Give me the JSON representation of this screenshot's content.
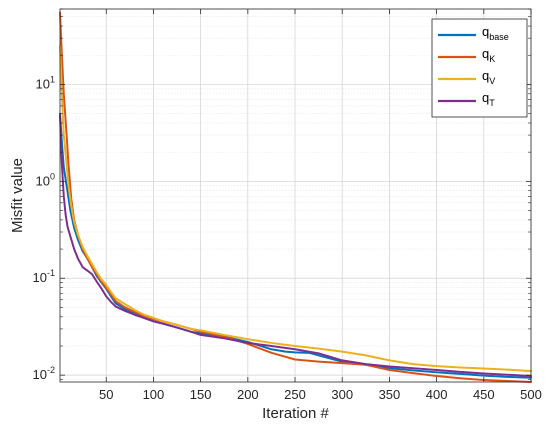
{
  "chart_data": {
    "type": "line",
    "xlabel": "Iteration #",
    "ylabel": "Misfit value",
    "xlim": [
      1,
      500
    ],
    "ylim": [
      0.0085,
      60
    ],
    "yscale": "log",
    "grid": true,
    "minor_grid": true,
    "legend_position": "top-right",
    "x_ticks": [
      50,
      100,
      150,
      200,
      250,
      300,
      350,
      400,
      450,
      500
    ],
    "x_tick_labels": [
      "50",
      "100",
      "150",
      "200",
      "250",
      "300",
      "350",
      "400",
      "450",
      "500"
    ],
    "y_ticks": [
      0.01,
      0.1,
      1,
      10
    ],
    "y_tick_labels": [
      {
        "base": "10",
        "exp": "-2"
      },
      {
        "base": "10",
        "exp": "-1"
      },
      {
        "base": "10",
        "exp": "0"
      },
      {
        "base": "10",
        "exp": "1"
      }
    ],
    "series": [
      {
        "name_main": "q",
        "name_sub": "base",
        "color": "#0072BD",
        "points": [
          [
            1,
            5
          ],
          [
            3,
            2.5
          ],
          [
            5,
            1.4
          ],
          [
            8,
            0.9
          ],
          [
            12,
            0.5
          ],
          [
            16,
            0.33
          ],
          [
            20,
            0.25
          ],
          [
            25,
            0.19
          ],
          [
            30,
            0.16
          ],
          [
            35,
            0.13
          ],
          [
            40,
            0.105
          ],
          [
            45,
            0.09
          ],
          [
            50,
            0.078
          ],
          [
            55,
            0.065
          ],
          [
            60,
            0.055
          ],
          [
            70,
            0.048
          ],
          [
            80,
            0.043
          ],
          [
            90,
            0.039
          ],
          [
            100,
            0.036
          ],
          [
            110,
            0.034
          ],
          [
            125,
            0.031
          ],
          [
            140,
            0.028
          ],
          [
            150,
            0.027
          ],
          [
            175,
            0.025
          ],
          [
            200,
            0.022
          ],
          [
            225,
            0.0185
          ],
          [
            240,
            0.0175
          ],
          [
            250,
            0.0172
          ],
          [
            265,
            0.017
          ],
          [
            280,
            0.0155
          ],
          [
            300,
            0.0138
          ],
          [
            325,
            0.0128
          ],
          [
            350,
            0.0118
          ],
          [
            375,
            0.0112
          ],
          [
            400,
            0.0107
          ],
          [
            425,
            0.0103
          ],
          [
            450,
            0.0099
          ],
          [
            475,
            0.0096
          ],
          [
            500,
            0.0094
          ]
        ]
      },
      {
        "name_main": "q",
        "name_sub": "K",
        "color": "#D95319",
        "points": [
          [
            1,
            55
          ],
          [
            3,
            20
          ],
          [
            5,
            8
          ],
          [
            8,
            3
          ],
          [
            10,
            1.5
          ],
          [
            13,
            0.65
          ],
          [
            16,
            0.4
          ],
          [
            20,
            0.28
          ],
          [
            25,
            0.2
          ],
          [
            30,
            0.16
          ],
          [
            35,
            0.13
          ],
          [
            40,
            0.11
          ],
          [
            45,
            0.092
          ],
          [
            50,
            0.08
          ],
          [
            55,
            0.068
          ],
          [
            60,
            0.058
          ],
          [
            70,
            0.05
          ],
          [
            80,
            0.045
          ],
          [
            90,
            0.041
          ],
          [
            100,
            0.038
          ],
          [
            110,
            0.036
          ],
          [
            125,
            0.033
          ],
          [
            140,
            0.03
          ],
          [
            150,
            0.028
          ],
          [
            175,
            0.025
          ],
          [
            200,
            0.021
          ],
          [
            225,
            0.017
          ],
          [
            250,
            0.0145
          ],
          [
            275,
            0.0138
          ],
          [
            300,
            0.0133
          ],
          [
            325,
            0.0128
          ],
          [
            350,
            0.0113
          ],
          [
            375,
            0.0105
          ],
          [
            400,
            0.0098
          ],
          [
            425,
            0.0093
          ],
          [
            450,
            0.0089
          ],
          [
            475,
            0.0087
          ],
          [
            500,
            0.0085
          ]
        ]
      },
      {
        "name_main": "q",
        "name_sub": "V",
        "color": "#EDB120",
        "points": [
          [
            1,
            25
          ],
          [
            3,
            8
          ],
          [
            5,
            3
          ],
          [
            8,
            1.5
          ],
          [
            10,
            0.9
          ],
          [
            13,
            0.55
          ],
          [
            16,
            0.38
          ],
          [
            20,
            0.28
          ],
          [
            25,
            0.21
          ],
          [
            30,
            0.17
          ],
          [
            35,
            0.14
          ],
          [
            40,
            0.115
          ],
          [
            45,
            0.097
          ],
          [
            50,
            0.085
          ],
          [
            55,
            0.072
          ],
          [
            60,
            0.062
          ],
          [
            70,
            0.054
          ],
          [
            80,
            0.047
          ],
          [
            90,
            0.042
          ],
          [
            100,
            0.039
          ],
          [
            110,
            0.036
          ],
          [
            125,
            0.033
          ],
          [
            140,
            0.03
          ],
          [
            150,
            0.029
          ],
          [
            175,
            0.026
          ],
          [
            200,
            0.0235
          ],
          [
            225,
            0.0215
          ],
          [
            250,
            0.02
          ],
          [
            275,
            0.0188
          ],
          [
            300,
            0.0175
          ],
          [
            325,
            0.016
          ],
          [
            350,
            0.0142
          ],
          [
            375,
            0.013
          ],
          [
            400,
            0.0124
          ],
          [
            425,
            0.012
          ],
          [
            450,
            0.0117
          ],
          [
            475,
            0.0114
          ],
          [
            500,
            0.011
          ]
        ]
      },
      {
        "name_main": "q",
        "name_sub": "T",
        "color": "#7E2F8E",
        "points": [
          [
            1,
            4.8
          ],
          [
            3,
            1.5
          ],
          [
            5,
            0.7
          ],
          [
            7,
            0.45
          ],
          [
            9,
            0.34
          ],
          [
            12,
            0.27
          ],
          [
            16,
            0.2
          ],
          [
            20,
            0.16
          ],
          [
            25,
            0.13
          ],
          [
            30,
            0.12
          ],
          [
            35,
            0.11
          ],
          [
            40,
            0.092
          ],
          [
            45,
            0.078
          ],
          [
            50,
            0.065
          ],
          [
            55,
            0.057
          ],
          [
            60,
            0.051
          ],
          [
            70,
            0.046
          ],
          [
            80,
            0.042
          ],
          [
            90,
            0.039
          ],
          [
            100,
            0.036
          ],
          [
            110,
            0.034
          ],
          [
            125,
            0.031
          ],
          [
            140,
            0.028
          ],
          [
            150,
            0.026
          ],
          [
            175,
            0.024
          ],
          [
            200,
            0.0215
          ],
          [
            225,
            0.02
          ],
          [
            250,
            0.0185
          ],
          [
            275,
            0.0168
          ],
          [
            300,
            0.0142
          ],
          [
            325,
            0.013
          ],
          [
            350,
            0.0123
          ],
          [
            375,
            0.0118
          ],
          [
            400,
            0.0113
          ],
          [
            425,
            0.0108
          ],
          [
            450,
            0.0104
          ],
          [
            475,
            0.0101
          ],
          [
            500,
            0.0098
          ]
        ]
      }
    ]
  }
}
